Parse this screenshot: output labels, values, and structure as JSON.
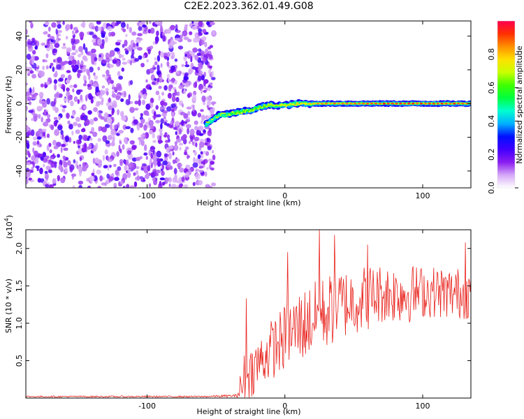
{
  "chart_data": [
    {
      "type": "heatmap",
      "title": "C2E2.2023.362.01.49.G08",
      "xlabel": "Height of straight line (km)",
      "ylabel": "Frequency (Hz)",
      "xlim": [
        -188,
        135
      ],
      "ylim": [
        -50,
        49
      ],
      "xticks": [
        -100,
        0,
        100
      ],
      "yticks": [
        -40,
        -20,
        0,
        20,
        40
      ],
      "colorbar": {
        "label": "Normalized spectral amplitude",
        "range": [
          0,
          1
        ],
        "ticks": [
          0.0,
          0.2,
          0.4,
          0.6,
          0.8
        ],
        "colors": [
          "#ffffff",
          "#d6a8f8",
          "#8a1cf0",
          "#4000ff",
          "#0010ff",
          "#00b0ff",
          "#00ffd0",
          "#00ff40",
          "#40ff00",
          "#c8ff00",
          "#ffe000",
          "#ff9000",
          "#ff3000",
          "#ff0050"
        ]
      },
      "noise_region_x": [
        -188,
        -53
      ],
      "signal_trace": {
        "x": [
          -57,
          -48,
          -40,
          -32,
          -25,
          -18,
          -10,
          0,
          10,
          20,
          40,
          60,
          80,
          100,
          135
        ],
        "frequency_hz": [
          -12,
          -7,
          -6,
          -5,
          -4,
          -2,
          -1,
          -1,
          0,
          0,
          0,
          0,
          0,
          0,
          0
        ],
        "peak_amplitude": [
          0.45,
          0.5,
          0.55,
          0.6,
          0.6,
          0.62,
          0.65,
          0.7,
          0.75,
          0.8,
          0.85,
          0.9,
          0.9,
          0.9,
          0.9
        ]
      }
    },
    {
      "type": "line",
      "xlabel": "Height of straight line (km)",
      "ylabel": "SNR (10 * v/v)",
      "scale_label": "(x10",
      "scale_exponent": "4",
      "scale_suffix": ")",
      "xlim": [
        -188,
        135
      ],
      "ylim": [
        0,
        2.25
      ],
      "xticks": [
        -100,
        0,
        100
      ],
      "yticks": [
        0.5,
        1.0,
        1.5,
        2.0
      ],
      "ytick_labels": [
        "0.5",
        "1.0",
        "1.5",
        "2.0"
      ],
      "series": [
        {
          "color": "#e8201a",
          "x": [
            -188,
            -60,
            -35,
            -30,
            -25,
            -20,
            -10,
            0,
            10,
            20,
            30,
            40,
            50,
            60,
            70,
            80,
            90,
            100,
            110,
            120,
            130,
            135
          ],
          "y": [
            0.02,
            0.02,
            0.03,
            0.2,
            0.35,
            0.45,
            0.65,
            0.8,
            0.95,
            1.05,
            1.15,
            1.25,
            1.3,
            1.35,
            1.4,
            1.4,
            1.4,
            1.42,
            1.42,
            1.4,
            1.4,
            1.4
          ],
          "noise_amplitude": [
            0.01,
            0.01,
            0.02,
            0.4,
            0.35,
            0.35,
            0.4,
            0.45,
            0.5,
            0.5,
            0.5,
            0.5,
            0.45,
            0.45,
            0.4,
            0.4,
            0.4,
            0.35,
            0.35,
            0.35,
            0.35,
            0.35
          ],
          "peaks": [
            {
              "x": -28,
              "y": 1.33
            },
            {
              "x": 2,
              "y": 1.95
            },
            {
              "x": 25,
              "y": 2.25
            },
            {
              "x": 36,
              "y": 2.18
            },
            {
              "x": 60,
              "y": 2.05
            },
            {
              "x": 131,
              "y": 2.08
            }
          ]
        }
      ]
    }
  ]
}
